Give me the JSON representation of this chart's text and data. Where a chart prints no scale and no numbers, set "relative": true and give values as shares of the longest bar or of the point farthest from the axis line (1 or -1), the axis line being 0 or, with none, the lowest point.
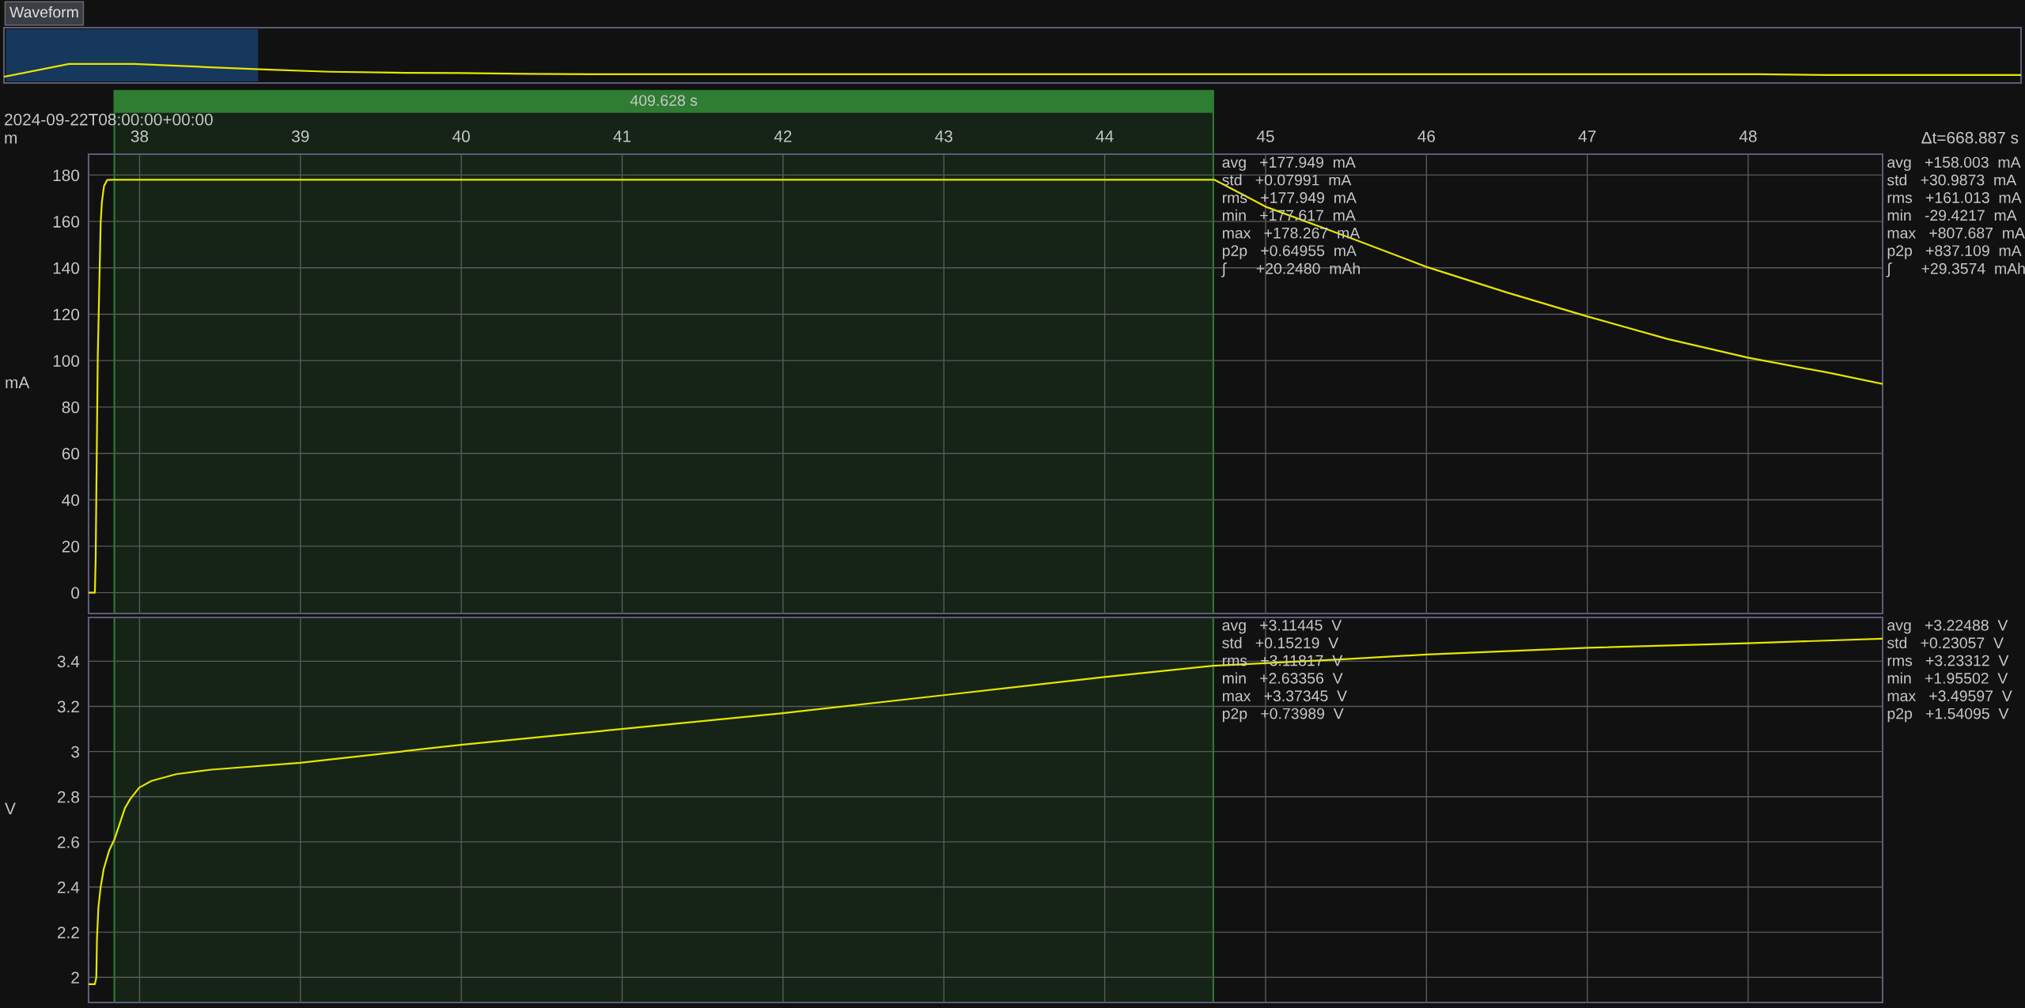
{
  "chart_data": [
    {
      "type": "line",
      "title": "Waveform",
      "relative": true,
      "tick_labels": false,
      "grid": false,
      "color": "#e6e600",
      "categories": [
        null,
        null,
        null,
        null,
        null,
        null,
        null,
        null,
        null,
        null,
        null,
        null,
        null,
        null,
        null,
        null,
        null,
        null,
        null,
        null,
        null,
        null,
        null,
        null,
        null,
        null,
        null,
        null,
        null,
        null,
        null,
        null
      ],
      "values": [
        0.33,
        1,
        1,
        0.85,
        0.71,
        0.59,
        0.54,
        0.52,
        0.48,
        0.46,
        0.46,
        0.46,
        0.46,
        0.46,
        0.46,
        0.46,
        0.46,
        0.46,
        0.46,
        0.46,
        0.46,
        0.46,
        0.46,
        0.46,
        0.46,
        0.46,
        0.46,
        0.46,
        0.42,
        0.42,
        0.42,
        0.42
      ]
    },
    {
      "type": "line",
      "xlabel": "m",
      "ylabel": "mA",
      "color": "#e6e600",
      "grid": true,
      "xlim": [
        37.683,
        48.836
      ],
      "xticks": [
        38,
        39,
        40,
        41,
        42,
        43,
        44,
        45,
        46,
        47,
        48
      ],
      "ylim": [
        -9,
        189
      ],
      "yticks": [
        0,
        20,
        40,
        60,
        80,
        100,
        120,
        140,
        160,
        180
      ],
      "x": [
        37.683,
        37.722,
        37.727,
        37.733,
        37.74,
        37.749,
        37.758,
        37.766,
        37.779,
        37.799,
        37.832,
        38.5,
        40,
        42,
        44,
        44.681,
        45.006,
        45.505,
        46.001,
        46.503,
        47.002,
        47.501,
        47.999,
        48.499,
        48.831
      ],
      "values": [
        0,
        0,
        14.8,
        55,
        101.5,
        130.4,
        159.4,
        168.5,
        175.3,
        177.9,
        178,
        178,
        178,
        178,
        178,
        178,
        166.2,
        153.5,
        140.4,
        129.3,
        119,
        109.3,
        101.3,
        94.8,
        90
      ],
      "bands": [
        {
          "axis": "x",
          "from": 37.843,
          "to": 44.675,
          "label": "409.628 s",
          "color": "#2e7d32"
        }
      ],
      "annotations": [
        "2024-09-22T08:00:00+00:00",
        "Δt=668.887 s",
        "avg   +177.949  mA\nstd   +0.07991  mA\nrms   +177.949  mA\nmin   +177.617  mA\nmax   +178.267  mA\np2p   +0.64955  mA\n∫       +20.2480  mAh",
        "avg   +158.003  mA\nstd   +30.9873  mA\nrms   +161.013  mA\nmin   -29.4217  mA\nmax   +807.687  mA\np2p   +837.109  mA\n∫       +29.3574  mAh"
      ]
    },
    {
      "type": "line",
      "ylabel": "V",
      "color": "#e6e600",
      "grid": true,
      "tick_labels": "y",
      "xlim": [
        37.683,
        48.836
      ],
      "xticks": [
        38,
        39,
        40,
        41,
        42,
        43,
        44,
        45,
        46,
        47,
        48
      ],
      "ylim": [
        1.889,
        3.594
      ],
      "yticks": [
        2,
        2.2,
        2.4,
        2.6,
        2.8,
        3,
        3.2,
        3.4
      ],
      "x": [
        37.683,
        37.722,
        37.731,
        37.735,
        37.744,
        37.758,
        37.777,
        37.81,
        37.843,
        37.876,
        37.909,
        37.942,
        37.997,
        38.074,
        38.227,
        38.447,
        38.998,
        39.997,
        40.573,
        40.996,
        41.998,
        43.001,
        43.997,
        44.675,
        45.505,
        46.001,
        47.002,
        47.999,
        48.831
      ],
      "values": [
        1.97,
        1.97,
        2.0,
        2.17,
        2.31,
        2.4,
        2.48,
        2.56,
        2.61,
        2.68,
        2.75,
        2.79,
        2.84,
        2.87,
        2.9,
        2.92,
        2.95,
        3.03,
        3.07,
        3.1,
        3.17,
        3.25,
        3.33,
        3.38,
        3.41,
        3.43,
        3.46,
        3.48,
        3.5
      ],
      "bands": [
        {
          "axis": "x",
          "from": 37.843,
          "to": 44.675,
          "color": "#2e7d32"
        }
      ],
      "annotations": [
        "avg   +3.11445  V\nstd   +0.15219  V\nrms   +3.11817  V\nmin   +2.63356  V\nmax   +3.37345  V\np2p   +0.73989  V",
        "avg   +3.22488  V\nstd   +0.23057  V\nrms   +3.23312  V\nmin   +1.95502  V\nmax   +3.49597  V\np2p   +1.54095  V"
      ]
    }
  ]
}
